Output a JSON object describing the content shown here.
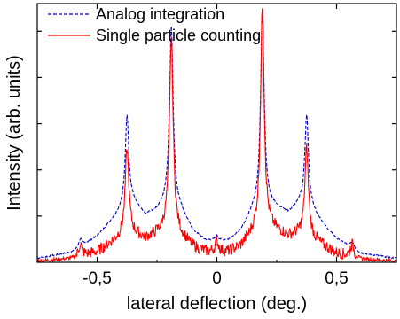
{
  "chart_data": {
    "type": "line",
    "title": "",
    "xlabel": "lateral deflection (deg.)",
    "ylabel": "Intensity (arb. units)",
    "xlim": [
      -0.75,
      0.75
    ],
    "ylim": [
      0,
      1.0
    ],
    "x_ticks": [
      -0.5,
      0,
      0.5
    ],
    "x_tick_labels": [
      "-0,5",
      "0",
      "0,5"
    ],
    "y_tick_labels_visible": false,
    "grid": false,
    "legend_position": "top-left",
    "peaks_x": [
      -0.57,
      -0.375,
      -0.19,
      0.0,
      0.19,
      0.375,
      0.565
    ],
    "series": [
      {
        "name": "Analog integration",
        "color": "#0000cc",
        "style": "dashed",
        "baseline": 0.015,
        "peak_heights": [
          0.09,
          0.57,
          0.91,
          0.1,
          0.97,
          0.57,
          0.08
        ],
        "background": [
          [
            -0.75,
            0.015
          ],
          [
            -0.6,
            0.04
          ],
          [
            -0.5,
            0.1
          ],
          [
            -0.45,
            0.15
          ],
          [
            -0.4,
            0.2
          ],
          [
            -0.35,
            0.23
          ],
          [
            -0.3,
            0.18
          ],
          [
            -0.25,
            0.2
          ],
          [
            -0.2,
            0.24
          ],
          [
            -0.15,
            0.2
          ],
          [
            -0.1,
            0.12
          ],
          [
            -0.05,
            0.085
          ],
          [
            0.0,
            0.08
          ],
          [
            0.05,
            0.085
          ],
          [
            0.1,
            0.12
          ],
          [
            0.15,
            0.2
          ],
          [
            0.2,
            0.23
          ],
          [
            0.25,
            0.21
          ],
          [
            0.3,
            0.19
          ],
          [
            0.35,
            0.23
          ],
          [
            0.4,
            0.2
          ],
          [
            0.45,
            0.14
          ],
          [
            0.5,
            0.09
          ],
          [
            0.6,
            0.035
          ],
          [
            0.75,
            0.015
          ]
        ]
      },
      {
        "name": "Single particle counting",
        "color": "#ff0000",
        "style": "solid",
        "baseline": 0.005,
        "peak_heights": [
          0.07,
          0.44,
          0.87,
          0.08,
          0.99,
          0.44,
          0.07
        ],
        "background": [
          [
            -0.75,
            0.005
          ],
          [
            -0.6,
            0.015
          ],
          [
            -0.5,
            0.04
          ],
          [
            -0.45,
            0.07
          ],
          [
            -0.4,
            0.1
          ],
          [
            -0.35,
            0.11
          ],
          [
            -0.3,
            0.09
          ],
          [
            -0.25,
            0.11
          ],
          [
            -0.2,
            0.14
          ],
          [
            -0.15,
            0.1
          ],
          [
            -0.1,
            0.06
          ],
          [
            -0.05,
            0.04
          ],
          [
            0.0,
            0.035
          ],
          [
            0.05,
            0.04
          ],
          [
            0.1,
            0.06
          ],
          [
            0.15,
            0.11
          ],
          [
            0.2,
            0.14
          ],
          [
            0.25,
            0.12
          ],
          [
            0.3,
            0.1
          ],
          [
            0.35,
            0.11
          ],
          [
            0.4,
            0.09
          ],
          [
            0.45,
            0.06
          ],
          [
            0.5,
            0.035
          ],
          [
            0.6,
            0.012
          ],
          [
            0.75,
            0.005
          ]
        ]
      }
    ]
  }
}
